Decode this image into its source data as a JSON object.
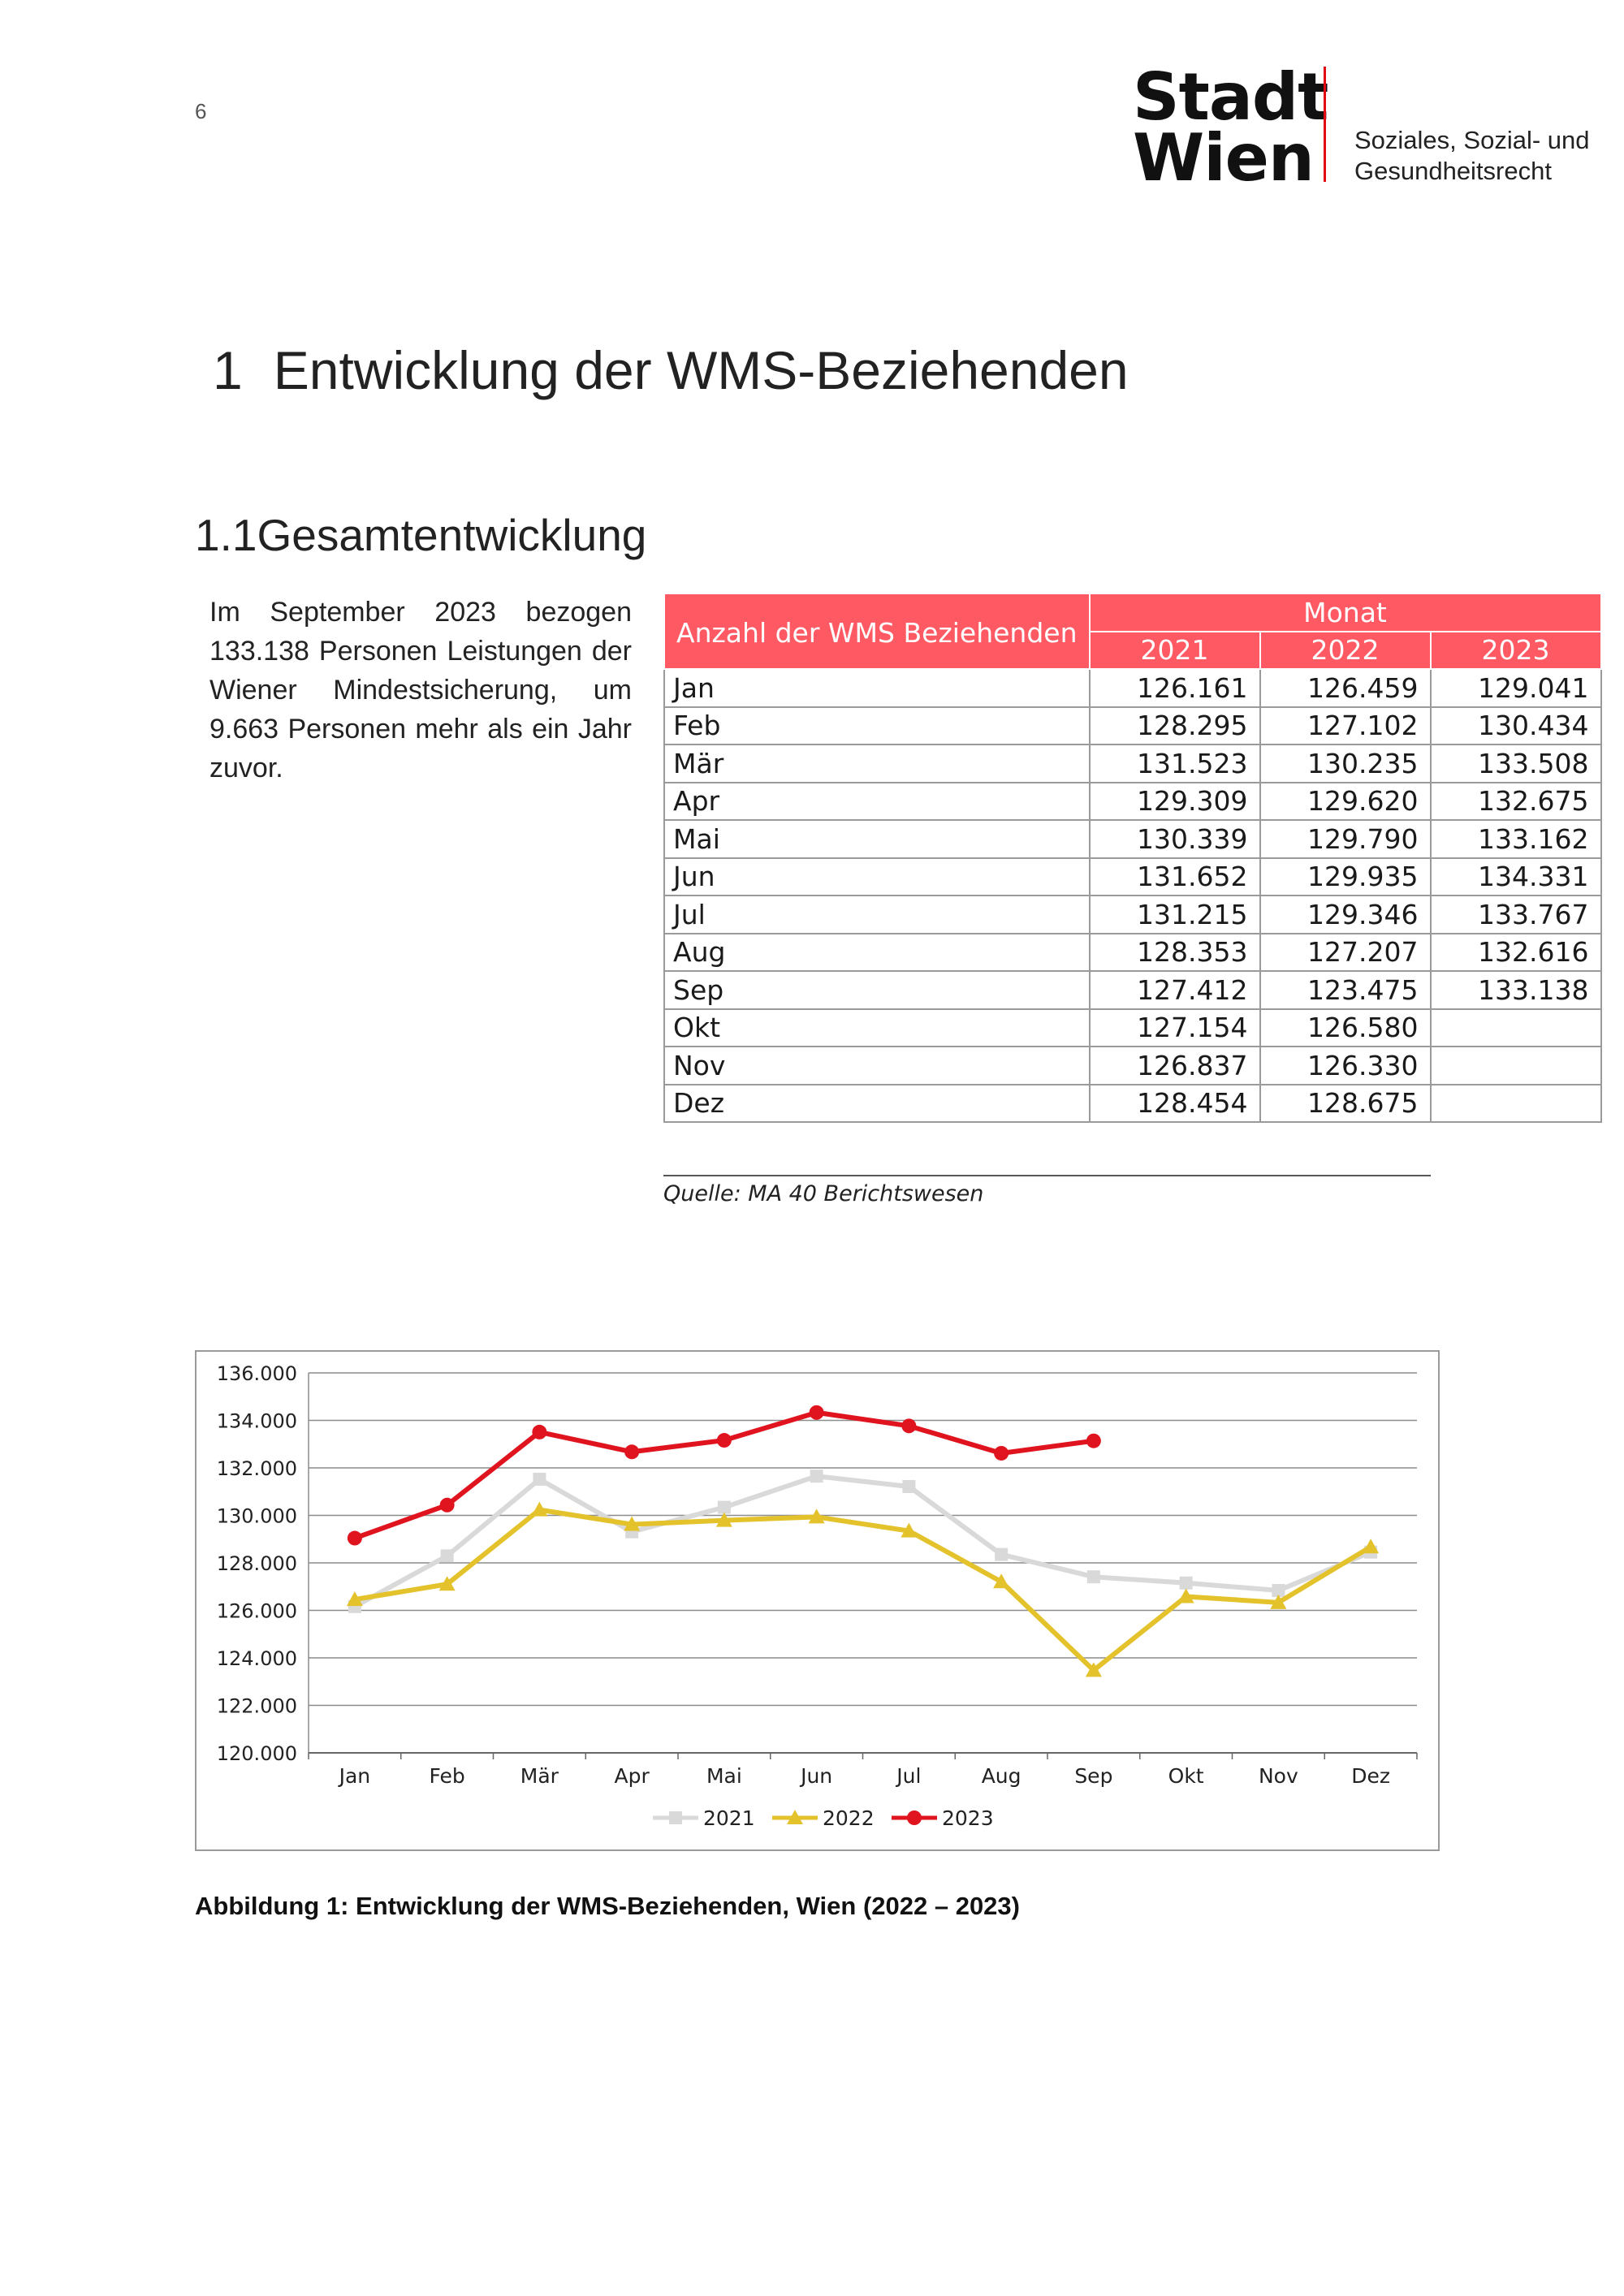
{
  "page": {
    "number": "6"
  },
  "logo": {
    "line1": "Stadt",
    "line2": "Wien"
  },
  "department": {
    "line1": "Soziales, Sozial- und",
    "line2": "Gesundheitsrecht"
  },
  "heading1": {
    "number": "1",
    "text": "Entwicklung der WMS-Beziehenden"
  },
  "heading2": {
    "text": "1.1Gesamtentwicklung"
  },
  "intro_text": "Im September 2023 bezogen 133.138 Personen Leistungen der Wiener Mindestsicherung, um 9.663 Personen mehr als ein Jahr zuvor.",
  "table": {
    "corner_label": "Anzahl der WMS Beziehenden",
    "group_label": "Monat",
    "years": [
      "2021",
      "2022",
      "2023"
    ],
    "rows": [
      {
        "month": "Jan",
        "values": [
          "126.161",
          "126.459",
          "129.041"
        ]
      },
      {
        "month": "Feb",
        "values": [
          "128.295",
          "127.102",
          "130.434"
        ]
      },
      {
        "month": "Mär",
        "values": [
          "131.523",
          "130.235",
          "133.508"
        ]
      },
      {
        "month": "Apr",
        "values": [
          "129.309",
          "129.620",
          "132.675"
        ]
      },
      {
        "month": "Mai",
        "values": [
          "130.339",
          "129.790",
          "133.162"
        ]
      },
      {
        "month": "Jun",
        "values": [
          "131.652",
          "129.935",
          "134.331"
        ]
      },
      {
        "month": "Jul",
        "values": [
          "131.215",
          "129.346",
          "133.767"
        ]
      },
      {
        "month": "Aug",
        "values": [
          "128.353",
          "127.207",
          "132.616"
        ]
      },
      {
        "month": "Sep",
        "values": [
          "127.412",
          "123.475",
          "133.138"
        ]
      },
      {
        "month": "Okt",
        "values": [
          "127.154",
          "126.580",
          ""
        ]
      },
      {
        "month": "Nov",
        "values": [
          "126.837",
          "126.330",
          ""
        ]
      },
      {
        "month": "Dez",
        "values": [
          "128.454",
          "128.675",
          ""
        ]
      }
    ],
    "source": "Quelle: MA 40 Berichtswesen"
  },
  "chart_data": {
    "type": "line",
    "title": "",
    "xlabel": "",
    "ylabel": "",
    "categories": [
      "Jan",
      "Feb",
      "Mär",
      "Apr",
      "Mai",
      "Jun",
      "Jul",
      "Aug",
      "Sep",
      "Okt",
      "Nov",
      "Dez"
    ],
    "ylim": [
      120000,
      136000
    ],
    "yticks": [
      120000,
      122000,
      124000,
      126000,
      128000,
      130000,
      132000,
      134000,
      136000
    ],
    "ytick_labels": [
      "120.000",
      "122.000",
      "124.000",
      "126.000",
      "128.000",
      "130.000",
      "132.000",
      "134.000",
      "136.000"
    ],
    "grid": true,
    "legend_position": "bottom",
    "series": [
      {
        "name": "2021",
        "color": "#d9d9d9",
        "marker": "square",
        "values": [
          126161,
          128295,
          131523,
          129309,
          130339,
          131652,
          131215,
          128353,
          127412,
          127154,
          126837,
          128454
        ]
      },
      {
        "name": "2022",
        "color": "#e3c22b",
        "marker": "triangle",
        "values": [
          126459,
          127102,
          130235,
          129620,
          129790,
          129935,
          129346,
          127207,
          123475,
          126580,
          126330,
          128675
        ]
      },
      {
        "name": "2023",
        "color": "#e0141e",
        "marker": "circle",
        "values": [
          129041,
          130434,
          133508,
          132675,
          133162,
          134331,
          133767,
          132616,
          133138,
          null,
          null,
          null
        ]
      }
    ]
  },
  "caption": "Abbildung 1: Entwicklung der WMS-Beziehenden, Wien (2022 – 2023)",
  "colors": {
    "accent_red": "#e30613",
    "table_header": "#ff5a64"
  }
}
